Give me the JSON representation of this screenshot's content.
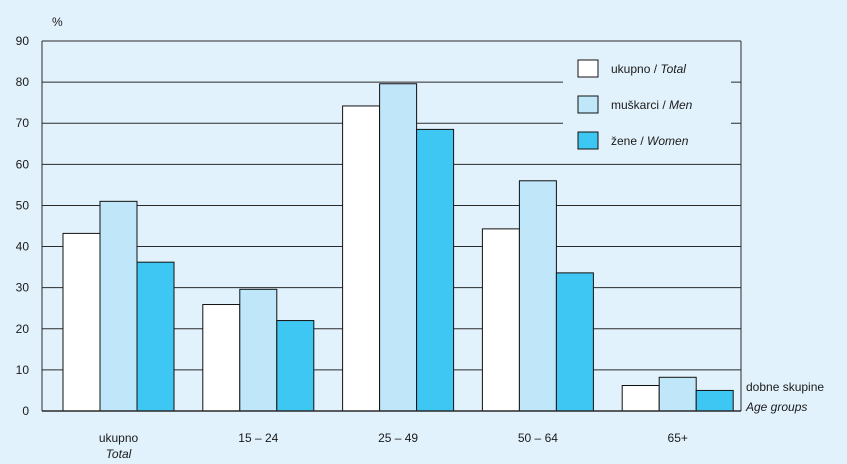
{
  "chart_data": {
    "type": "bar",
    "ylabel": "%",
    "xlabel": "dobne skupine",
    "xlabel_en": "Age groups",
    "ylim": [
      0,
      90
    ],
    "yticks": [
      0,
      10,
      20,
      30,
      40,
      50,
      60,
      70,
      80,
      90
    ],
    "grid": "horizontal",
    "legend_position": "top-right",
    "categories": [
      "ukupno",
      "15 – 24",
      "25 – 49",
      "50 – 64",
      "65+"
    ],
    "category_subtitles": [
      "Total",
      "",
      "",
      "",
      ""
    ],
    "series": [
      {
        "name": "ukupno",
        "name_en": "Total",
        "color": "#ffffff",
        "values": [
          43.2,
          25.9,
          74.2,
          44.3,
          6.2
        ]
      },
      {
        "name": "muškarci",
        "name_en": "Men",
        "color": "#bfe6f9",
        "values": [
          51.0,
          29.6,
          79.6,
          56.0,
          8.2
        ]
      },
      {
        "name": "žene",
        "name_en": "Women",
        "color": "#3ec7f2",
        "values": [
          36.2,
          22.0,
          68.5,
          33.6,
          5.0
        ]
      }
    ]
  }
}
